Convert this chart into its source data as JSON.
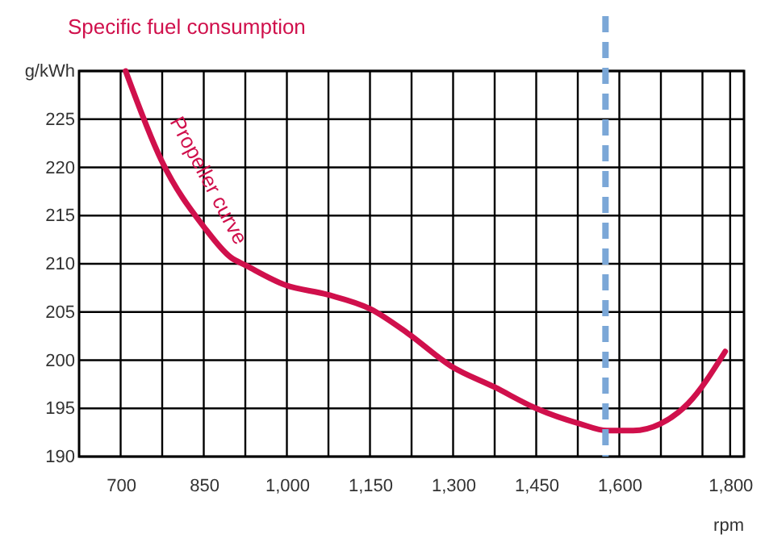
{
  "chart_data": {
    "type": "line",
    "title": "Specific fuel consumption",
    "xlabel": "rpm",
    "x": [
      709,
      773,
      852,
      898,
      927,
      997,
      1073,
      1151,
      1218,
      1296,
      1375,
      1450,
      1529,
      1578,
      1625,
      1674,
      1724,
      1791
    ],
    "series": [
      {
        "color": "#d0104c",
        "values": [
          230,
          220.8,
          213.7,
          210.7,
          209.8,
          207.8,
          206.8,
          205.3,
          202.8,
          199.4,
          197.2,
          195.0,
          193.4,
          192.7,
          192.7,
          193.4,
          195.5,
          200.9
        ]
      }
    ],
    "xlim": [
      625,
      1825
    ],
    "xticks": [
      700,
      {
        "value": 775,
        "label": null
      },
      850,
      {
        "value": 925,
        "label": null
      },
      {
        "value": 1000,
        "label": "1,000"
      },
      {
        "value": 1075,
        "label": null
      },
      {
        "value": 1150,
        "label": "1,150"
      },
      {
        "value": 1225,
        "label": null
      },
      {
        "value": 1300,
        "label": "1,300"
      },
      {
        "value": 1375,
        "label": null
      },
      {
        "value": 1450,
        "label": "1,450"
      },
      {
        "value": 1525,
        "label": null
      },
      {
        "value": 1600,
        "label": "1,600"
      },
      {
        "value": 1675,
        "label": null
      },
      {
        "value": 1750,
        "label": null
      },
      {
        "value": 1800,
        "label": "1,800"
      }
    ],
    "ylim": [
      190,
      230
    ],
    "yticks": [
      190,
      195,
      200,
      205,
      210,
      215,
      220,
      225,
      {
        "value": 230,
        "label": "g/kWh"
      }
    ],
    "grid": true,
    "marker": "none",
    "line_style": "solid",
    "ref_lines": [
      {
        "axis": "x",
        "value": 1575,
        "color": "#7ba7d7",
        "line_style": "dashed"
      }
    ],
    "annotations": [
      "Propeller curve"
    ]
  }
}
